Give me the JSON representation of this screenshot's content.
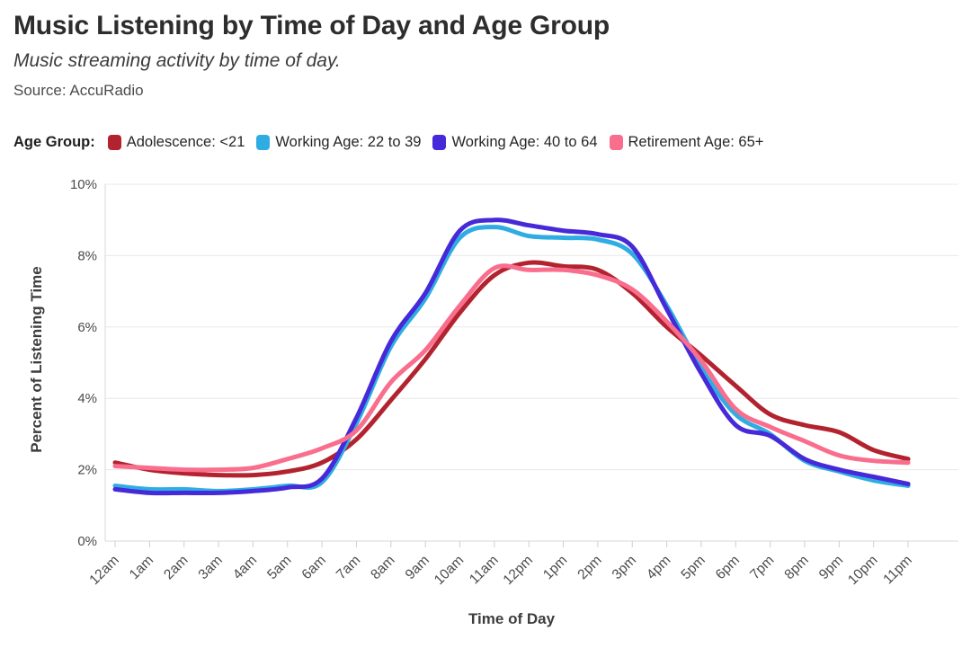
{
  "header": {
    "title": "Music Listening by Time of Day and Age Group",
    "subtitle": "Music streaming activity by time of day.",
    "source": "Source: AccuRadio"
  },
  "legend": {
    "label": "Age Group:",
    "items": [
      {
        "label": "Adolescence: <21",
        "color": "#B2232F"
      },
      {
        "label": "Working Age: 22 to 39",
        "color": "#2FADE3"
      },
      {
        "label": "Working Age: 40 to 64",
        "color": "#4629D8"
      },
      {
        "label": "Retirement Age: 65+",
        "color": "#F96D8D"
      }
    ]
  },
  "chart_data": {
    "type": "line",
    "title": "Music Listening by Time of Day and Age Group",
    "xlabel": "Time of Day",
    "ylabel": "Percent of Listening Time",
    "x": [
      "12am",
      "1am",
      "2am",
      "3am",
      "4am",
      "5am",
      "6am",
      "7am",
      "8am",
      "9am",
      "10am",
      "11am",
      "12pm",
      "1pm",
      "2pm",
      "3pm",
      "4pm",
      "5pm",
      "6pm",
      "7pm",
      "8pm",
      "9pm",
      "10pm",
      "11pm"
    ],
    "ylim": [
      0,
      10
    ],
    "ytick_step": 2,
    "ytick_suffix": "%",
    "grid": "horizontal-only",
    "legend_position": "top",
    "series": [
      {
        "name": "Adolescence: <21",
        "color": "#B2232F",
        "values": [
          2.2,
          2.0,
          1.9,
          1.85,
          1.85,
          1.95,
          2.2,
          2.85,
          3.95,
          5.1,
          6.4,
          7.45,
          7.8,
          7.7,
          7.6,
          6.95,
          6.0,
          5.2,
          4.35,
          3.55,
          3.25,
          3.05,
          2.55,
          2.3
        ]
      },
      {
        "name": "Working Age: 22 to 39",
        "color": "#2FADE3",
        "values": [
          1.55,
          1.45,
          1.45,
          1.4,
          1.45,
          1.55,
          1.65,
          3.3,
          5.45,
          6.8,
          8.5,
          8.8,
          8.55,
          8.5,
          8.45,
          8.05,
          6.6,
          4.85,
          3.55,
          3.0,
          2.25,
          1.95,
          1.7,
          1.55
        ]
      },
      {
        "name": "Working Age: 40 to 64",
        "color": "#4629D8",
        "values": [
          1.45,
          1.35,
          1.35,
          1.35,
          1.4,
          1.5,
          1.75,
          3.45,
          5.6,
          6.95,
          8.7,
          9.0,
          8.85,
          8.7,
          8.6,
          8.25,
          6.5,
          4.7,
          3.25,
          2.95,
          2.3,
          2.0,
          1.8,
          1.6
        ]
      },
      {
        "name": "Retirement Age: 65+",
        "color": "#F96D8D",
        "values": [
          2.1,
          2.05,
          2.0,
          2.0,
          2.05,
          2.3,
          2.6,
          3.1,
          4.45,
          5.35,
          6.6,
          7.65,
          7.6,
          7.6,
          7.45,
          7.05,
          6.15,
          5.05,
          3.7,
          3.2,
          2.8,
          2.4,
          2.25,
          2.2
        ]
      }
    ],
    "style": {
      "grid_color": "#e8e8e8",
      "axis_color": "#d9d9d9",
      "tick_color": "#cfcfcf",
      "tick_label_color": "#4b4b4b",
      "axis_title_color": "#3d3d3d",
      "line_width": 5
    }
  }
}
